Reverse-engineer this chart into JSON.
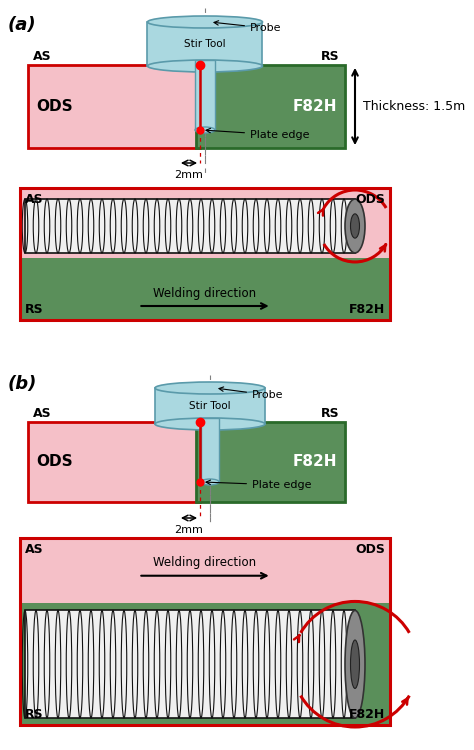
{
  "fig_width": 4.74,
  "fig_height": 7.5,
  "bg_color": "#ffffff",
  "ods_color": "#f5c0c8",
  "ods_border": "#cc0000",
  "f82h_color": "#5a8f5a",
  "f82h_border": "#2a6a2a",
  "tool_body_color": "#aad8e0",
  "tool_body_edge": "#5a9aaa",
  "probe_color": "#aad8e0",
  "dot_color": "#ff0000",
  "panel_a_label": "(a)",
  "panel_b_label": "(b)",
  "as_label": "AS",
  "rs_label": "RS",
  "ods_label": "ODS",
  "f82h_label": "F82H",
  "stir_tool_label": "Stir Tool",
  "probe_label": "Probe",
  "plate_edge_label": "Plate edge",
  "dim_label": "2mm",
  "thickness_label": "Thickness: 1.5m",
  "welding_dir_label": "Welding direction",
  "pink_color": "#f5c0c8",
  "green_color": "#5a8f5a",
  "coil_fill": "#f0f0f0",
  "end_cap_color": "#888888",
  "red_color": "#cc0000"
}
